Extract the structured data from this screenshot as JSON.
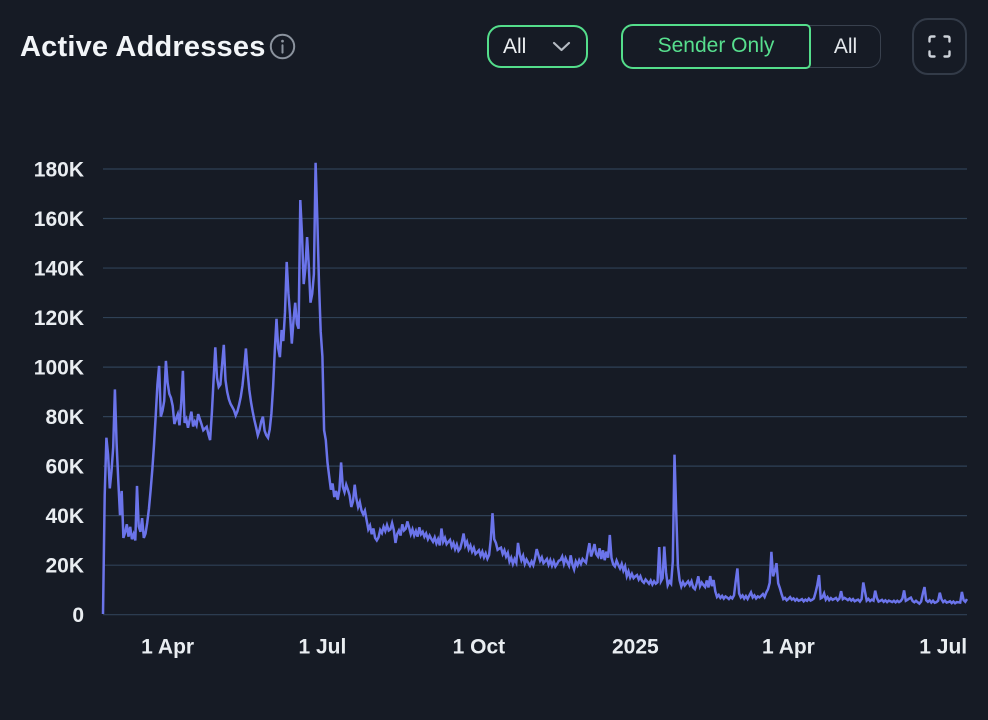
{
  "header": {
    "title": "Active Addresses"
  },
  "controls": {
    "filter_dropdown": {
      "value": "All"
    },
    "segmented": {
      "options": [
        "Sender Only",
        "All"
      ],
      "selected": "Sender Only"
    }
  },
  "colors": {
    "background": "#161b25",
    "accent_green": "#54de8b",
    "line": "#6b74ea",
    "grid": "#2f4156",
    "label_text": "#e9edf1",
    "muted_icon": "#9aa3ad",
    "border_grey": "#39414e"
  },
  "chart_data": {
    "type": "line",
    "title": "Active Addresses",
    "ylim": [
      0,
      180000
    ],
    "y_ticks": [
      "0",
      "20K",
      "40K",
      "60K",
      "80K",
      "100K",
      "120K",
      "140K",
      "160K",
      "180K"
    ],
    "x_ticks": [
      {
        "label": "1 Apr",
        "day": 38
      },
      {
        "label": "1 Jul",
        "day": 129
      },
      {
        "label": "1 Oct",
        "day": 221
      },
      {
        "label": "2025",
        "day": 313
      },
      {
        "label": "1 Apr",
        "day": 403
      },
      {
        "label": "1 Jul",
        "day": 494
      }
    ],
    "grid": "horizontal",
    "legend": "none",
    "series": [
      {
        "name": "Active Addresses",
        "values": [
          300,
          48400,
          71500,
          64500,
          51000,
          58000,
          67600,
          91000,
          69100,
          54000,
          40200,
          50000,
          31000,
          33200,
          36500,
          31500,
          35500,
          30500,
          32500,
          30000,
          52000,
          35700,
          33500,
          39000,
          31000,
          32700,
          37100,
          42700,
          50200,
          58500,
          68500,
          80200,
          92800,
          100500,
          80000,
          82300,
          86300,
          102500,
          93700,
          89200,
          87500,
          84300,
          77000,
          79200,
          81000,
          76500,
          85400,
          98500,
          77500,
          79000,
          75500,
          78800,
          82000,
          76000,
          78000,
          76500,
          81000,
          78900,
          76800,
          74500,
          75200,
          75900,
          72900,
          70500,
          81800,
          95000,
          108000,
          95700,
          92000,
          93000,
          101000,
          109000,
          94700,
          90000,
          87000,
          85100,
          83900,
          82600,
          80500,
          82100,
          84800,
          88100,
          92600,
          99400,
          107500,
          98100,
          90800,
          85900,
          82000,
          78600,
          75700,
          72500,
          74600,
          78000,
          80000,
          74300,
          72500,
          71500,
          74800,
          81200,
          92000,
          106800,
          119500,
          107600,
          104000,
          115000,
          110500,
          122200,
          142500,
          129900,
          121000,
          109500,
          118800,
          126000,
          117500,
          115500,
          167500,
          153400,
          133500,
          140000,
          152500,
          140900,
          126000,
          129600,
          137600,
          182500,
          160000,
          133600,
          114300,
          104300,
          74500,
          70500,
          61400,
          55800,
          50500,
          53000,
          47500,
          50000,
          46500,
          50400,
          61500,
          51700,
          49500,
          52500,
          50500,
          48200,
          43500,
          45800,
          52500,
          46900,
          43500,
          45500,
          42100,
          40500,
          42000,
          38200,
          34500,
          36000,
          32500,
          34800,
          31000,
          30000,
          31200,
          34200,
          33000,
          35500,
          33800,
          36200,
          34000,
          34500,
          37000,
          34200,
          29000,
          32600,
          34000,
          32000,
          36500,
          34000,
          34700,
          37700,
          35200,
          32500,
          34500,
          32000,
          33800,
          31500,
          35300,
          32500,
          33500,
          31500,
          32800,
          30500,
          32000,
          30600,
          29500,
          31200,
          28800,
          30500,
          28000,
          34800,
          29500,
          31000,
          28500,
          29400,
          30200,
          27500,
          29000,
          26500,
          28300,
          25800,
          26700,
          29400,
          32800,
          28000,
          29500,
          26500,
          28000,
          25500,
          27000,
          24500,
          25200,
          26000,
          23800,
          25500,
          23200,
          24800,
          22600,
          24100,
          30500,
          41000,
          30500,
          29000,
          26200,
          26700,
          27100,
          24500,
          26000,
          23500,
          25000,
          21500,
          23000,
          20500,
          22500,
          21000,
          29000,
          24500,
          22000,
          23800,
          20500,
          22300,
          21000,
          19800,
          21500,
          20000,
          22700,
          26500,
          24100,
          21800,
          23200,
          20800,
          21600,
          22500,
          20200,
          22000,
          19800,
          21600,
          19500,
          20500,
          21800,
          22100,
          23500,
          20500,
          22800,
          21200,
          19800,
          24000,
          20300,
          18300,
          21500,
          20000,
          22000,
          20500,
          22500,
          21700,
          21000,
          25200,
          28900,
          23500,
          25700,
          28500,
          24500,
          23500,
          26800,
          22500,
          26000,
          22000,
          25500,
          23000,
          32200,
          22900,
          20300,
          19500,
          21800,
          20100,
          18700,
          20500,
          17800,
          19500,
          15600,
          17500,
          15000,
          16500,
          14800,
          15500,
          16000,
          14200,
          15500,
          13600,
          12900,
          14200,
          13400,
          12500,
          13800,
          12200,
          13500,
          12500,
          13100,
          27300,
          13500,
          14800,
          27500,
          17200,
          11900,
          13500,
          12500,
          21500,
          64600,
          41600,
          19800,
          13900,
          11400,
          13200,
          11800,
          12700,
          13500,
          12000,
          13500,
          11000,
          10300,
          12500,
          15500,
          11500,
          13000,
          12000,
          11200,
          13800,
          11000,
          15600,
          11500,
          14000,
          9400,
          7200,
          8000,
          6800,
          7600,
          6500,
          7400,
          6900,
          6300,
          7200,
          6600,
          7800,
          13500,
          18700,
          8600,
          7000,
          7800,
          6500,
          7500,
          6400,
          7700,
          9000,
          7000,
          7800,
          6600,
          7400,
          7000,
          7600,
          8300,
          7200,
          9000,
          10300,
          12900,
          25400,
          15500,
          17600,
          20800,
          12700,
          10700,
          8300,
          6300,
          6800,
          5800,
          6400,
          7100,
          6100,
          6600,
          5700,
          6400,
          5600,
          5900,
          6300,
          5400,
          6100,
          5600,
          6500,
          5700,
          6000,
          6600,
          9000,
          12000,
          16000,
          6600,
          7000,
          8600,
          6100,
          7100,
          5900,
          6700,
          6000,
          6400,
          6800,
          5800,
          6500,
          9500,
          6300,
          6800,
          6400,
          5900,
          6500,
          5700,
          6300,
          5400,
          5800,
          6100,
          5300,
          6300,
          13000,
          9300,
          5700,
          6400,
          5500,
          6100,
          5700,
          9700,
          6700,
          5300,
          5600,
          6000,
          5200,
          5800,
          5100,
          5700,
          5400,
          5100,
          5600,
          5000,
          5600,
          5100,
          5500,
          6500,
          9800,
          5600,
          6000,
          6500,
          6900,
          5500,
          5000,
          5600,
          5000,
          4500,
          5300,
          8500,
          11200,
          5800,
          5200,
          5800,
          4900,
          5600,
          4800,
          5100,
          5600,
          8900,
          6200,
          5100,
          5700,
          4900,
          5100,
          5400,
          4700,
          5300,
          4600,
          5100,
          5000,
          4900,
          9200,
          5900,
          5200,
          6300
        ]
      }
    ]
  }
}
